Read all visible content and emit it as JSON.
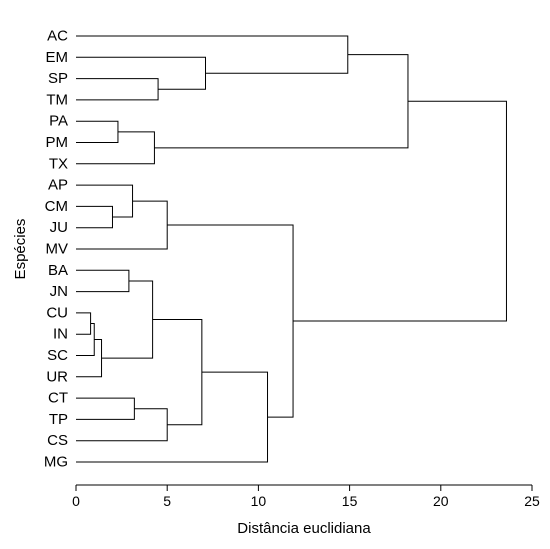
{
  "chart_data": {
    "type": "dendrogram",
    "orientation": "horizontal",
    "xlabel": "Distância euclidiana",
    "ylabel": "Espécies",
    "xlim": [
      0,
      25
    ],
    "xticks": [
      0,
      5,
      10,
      15,
      20,
      25
    ],
    "leaves": [
      "AC",
      "EM",
      "SP",
      "TM",
      "PA",
      "PM",
      "TX",
      "AP",
      "CM",
      "JU",
      "MV",
      "BA",
      "JN",
      "CU",
      "IN",
      "SC",
      "UR",
      "CT",
      "TP",
      "CS",
      "MG"
    ],
    "merges": [
      {
        "a": "CU",
        "b": "IN",
        "height": 0.8
      },
      {
        "a": "CU+IN",
        "b": "SC",
        "height": 1.0
      },
      {
        "a": "CU+IN+SC",
        "b": "UR",
        "height": 1.4
      },
      {
        "a": "CM",
        "b": "JU",
        "height": 2.0
      },
      {
        "a": "PA",
        "b": "PM",
        "height": 2.3
      },
      {
        "a": "BA",
        "b": "JN",
        "height": 2.9
      },
      {
        "a": "AP",
        "b": "CM+JU",
        "height": 3.1
      },
      {
        "a": "CT",
        "b": "TP",
        "height": 3.2
      },
      {
        "a": "BA+JN",
        "b": "CU+IN+SC+UR",
        "height": 4.2
      },
      {
        "a": "PA+PM",
        "b": "TX",
        "height": 4.3
      },
      {
        "a": "SP",
        "b": "TM",
        "height": 4.5
      },
      {
        "a": "CT+TP",
        "b": "CS",
        "height": 5.0
      },
      {
        "a": "AP+CM+JU",
        "b": "MV",
        "height": 5.0
      },
      {
        "a": "EM",
        "b": "SP+TM",
        "height": 7.1
      },
      {
        "a": "BA+JN+CU+IN+SC+UR",
        "b": "CT+TP+CS",
        "height": 6.9
      },
      {
        "a": "BA..CS",
        "b": "MG",
        "height": 10.5
      },
      {
        "a": "AP..MV",
        "b": "BA..MG",
        "height": 11.9
      },
      {
        "a": "AC",
        "b": "EM+SP+TM",
        "height": 14.9
      },
      {
        "a": "AC..TM",
        "b": "PA+PM+TX",
        "height": 18.2
      },
      {
        "a": "AC..TX",
        "b": "AP..MG",
        "height": 23.6
      }
    ]
  }
}
